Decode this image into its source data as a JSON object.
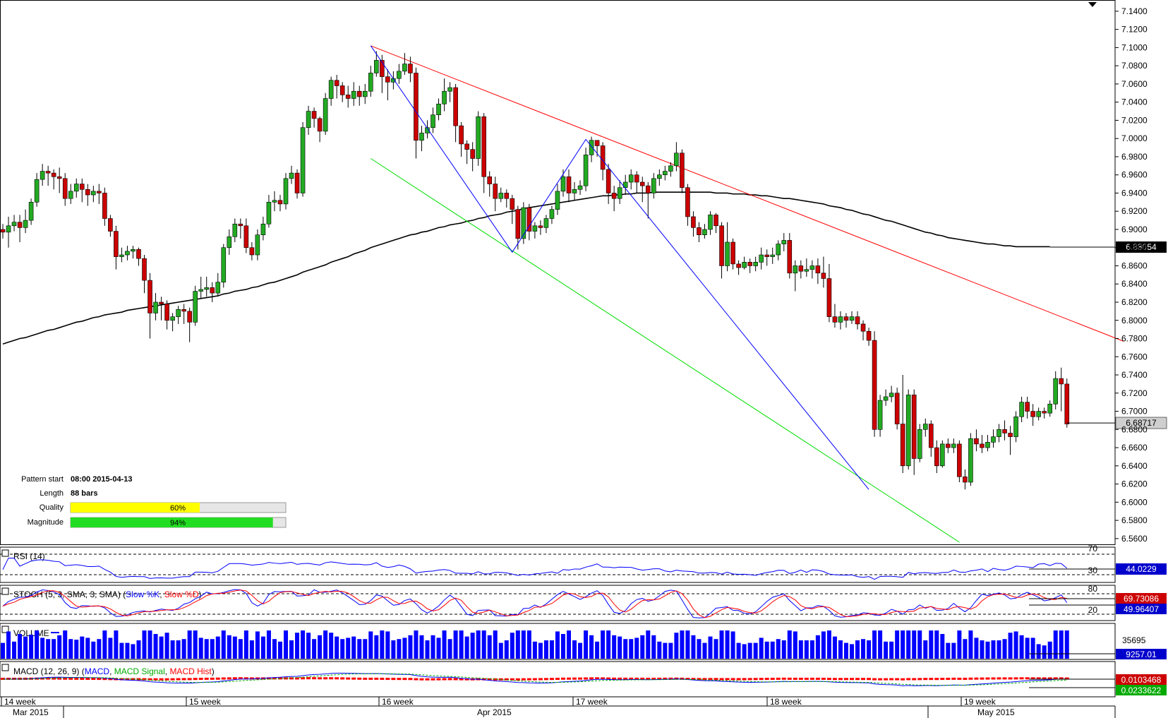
{
  "pattern_info": {
    "start_label": "Pattern start",
    "start_value": "08:00 2015-04-13",
    "length_label": "Length",
    "length_value": "88 bars",
    "quality_label": "Quality",
    "quality_value": "60%",
    "quality_fraction": 0.6,
    "magnitude_label": "Magnitude",
    "magnitude_value": "94%",
    "magnitude_fraction": 0.94
  },
  "x_axis": {
    "week_labels": [
      "14 week",
      "15 week",
      "16 week",
      "17 week",
      "18 week",
      "19 week"
    ],
    "month_labels": [
      "Mar 2015",
      "Apr 2015",
      "May 2015"
    ]
  },
  "indicators": {
    "rsi": {
      "title": "RSI (14)",
      "levels": [
        "70",
        "30"
      ],
      "value": "44.0229",
      "color": "#0000ff"
    },
    "stoch": {
      "title_prefix": "STOCH (5, 3, SMA, 3, SMA)",
      "k_label": "Slow %K",
      "d_label": "Slow %D",
      "levels": [
        "80",
        "20"
      ],
      "k_value": "49.96407",
      "d_value": "69.73086",
      "k_color": "#0000ff",
      "d_color": "#ff0000"
    },
    "volume": {
      "title": "VOLUME",
      "max_label": "35695",
      "value": "9257.01",
      "color": "#0000ff"
    },
    "macd": {
      "title_prefix": "MACD (12, 26, 9)",
      "macd_label": "MACD",
      "signal_label": "MACD Signal",
      "hist_label": "MACD Hist",
      "hist_value": "0.0103468",
      "signal_value": "0.0233622",
      "macd_color": "#0000ff",
      "signal_color": "#00aa00",
      "hist_color": "#ff0000"
    }
  },
  "chart_data": {
    "type": "candlestick",
    "y_ticks": [
      "7.1400",
      "7.1200",
      "7.1000",
      "7.0800",
      "7.0600",
      "7.0400",
      "7.0200",
      "7.0000",
      "6.9800",
      "6.9600",
      "6.9400",
      "6.9200",
      "6.9000",
      "6.8800",
      "6.8600",
      "6.8400",
      "6.8200",
      "6.8000",
      "6.7800",
      "6.7600",
      "6.7400",
      "6.7200",
      "6.7000",
      "6.6800",
      "6.6600",
      "6.6400",
      "6.6200",
      "6.6000",
      "6.5800",
      "6.5600"
    ],
    "ylim": [
      6.556,
      7.15
    ],
    "last_price": "6.68717",
    "ma_label": "6.88054",
    "ma_last": 6.88054,
    "colors": {
      "up": "#22aa22",
      "down": "#cc0000",
      "ma": "#000000",
      "pattern": "#0000ff",
      "upper_line": "#ff0000",
      "lower_line": "#00dd00"
    },
    "candles": [
      [
        6.9,
        6.897,
        6.89,
        6.906
      ],
      [
        6.897,
        6.904,
        6.88,
        6.914
      ],
      [
        6.904,
        6.908,
        6.898,
        6.916
      ],
      [
        6.908,
        6.902,
        6.886,
        6.916
      ],
      [
        6.902,
        6.91,
        6.896,
        6.922
      ],
      [
        6.91,
        6.93,
        6.905,
        6.934
      ],
      [
        6.93,
        6.955,
        6.925,
        6.962
      ],
      [
        6.955,
        6.964,
        6.948,
        6.972
      ],
      [
        6.964,
        6.962,
        6.948,
        6.97
      ],
      [
        6.962,
        6.958,
        6.944,
        6.966
      ],
      [
        6.958,
        6.956,
        6.94,
        6.968
      ],
      [
        6.956,
        6.934,
        6.926,
        6.962
      ],
      [
        6.934,
        6.942,
        6.928,
        6.95
      ],
      [
        6.942,
        6.95,
        6.935,
        6.956
      ],
      [
        6.95,
        6.944,
        6.93,
        6.956
      ],
      [
        6.944,
        6.938,
        6.926,
        6.95
      ],
      [
        6.938,
        6.942,
        6.93,
        6.948
      ],
      [
        6.942,
        6.94,
        6.928,
        6.95
      ],
      [
        6.94,
        6.912,
        6.904,
        6.946
      ],
      [
        6.912,
        6.898,
        6.892,
        6.916
      ],
      [
        6.898,
        6.87,
        6.856,
        6.904
      ],
      [
        6.87,
        6.872,
        6.864,
        6.88
      ],
      [
        6.872,
        6.876,
        6.866,
        6.882
      ],
      [
        6.876,
        6.878,
        6.868,
        6.882
      ],
      [
        6.878,
        6.868,
        6.86,
        6.88
      ],
      [
        6.868,
        6.844,
        6.83,
        6.872
      ],
      [
        6.844,
        6.808,
        6.78,
        6.852
      ],
      [
        6.808,
        6.82,
        6.8,
        6.83
      ],
      [
        6.82,
        6.818,
        6.8,
        6.826
      ],
      [
        6.818,
        6.8,
        6.79,
        6.822
      ],
      [
        6.8,
        6.804,
        6.788,
        6.808
      ],
      [
        6.804,
        6.812,
        6.796,
        6.816
      ],
      [
        6.812,
        6.81,
        6.796,
        6.818
      ],
      [
        6.81,
        6.798,
        6.776,
        6.814
      ],
      [
        6.798,
        6.832,
        6.794,
        6.838
      ],
      [
        6.832,
        6.834,
        6.824,
        6.848
      ],
      [
        6.834,
        6.836,
        6.826,
        6.848
      ],
      [
        6.836,
        6.83,
        6.82,
        6.842
      ],
      [
        6.83,
        6.842,
        6.826,
        6.852
      ],
      [
        6.842,
        6.88,
        6.836,
        6.884
      ],
      [
        6.88,
        6.892,
        6.872,
        6.9
      ],
      [
        6.892,
        6.906,
        6.886,
        6.912
      ],
      [
        6.906,
        6.904,
        6.89,
        6.912
      ],
      [
        6.904,
        6.88,
        6.874,
        6.912
      ],
      [
        6.88,
        6.872,
        6.866,
        6.886
      ],
      [
        6.872,
        6.894,
        6.866,
        6.9
      ],
      [
        6.894,
        6.906,
        6.888,
        6.914
      ],
      [
        6.906,
        6.93,
        6.902,
        6.938
      ],
      [
        6.93,
        6.932,
        6.92,
        6.942
      ],
      [
        6.932,
        6.928,
        6.92,
        6.938
      ],
      [
        6.928,
        6.956,
        6.922,
        6.962
      ],
      [
        6.956,
        6.962,
        6.95,
        6.97
      ],
      [
        6.962,
        6.94,
        6.934,
        6.966
      ],
      [
        6.94,
        7.012,
        6.936,
        7.018
      ],
      [
        7.012,
        7.03,
        7.004,
        7.036
      ],
      [
        7.03,
        7.022,
        7.012,
        7.034
      ],
      [
        7.022,
        7.008,
        6.996,
        7.024
      ],
      [
        7.008,
        7.044,
        7.004,
        7.05
      ],
      [
        7.044,
        7.064,
        7.036,
        7.068
      ],
      [
        7.064,
        7.058,
        7.044,
        7.07
      ],
      [
        7.058,
        7.048,
        7.04,
        7.062
      ],
      [
        7.048,
        7.044,
        7.034,
        7.058
      ],
      [
        7.044,
        7.052,
        7.036,
        7.062
      ],
      [
        7.052,
        7.046,
        7.036,
        7.058
      ],
      [
        7.046,
        7.052,
        7.038,
        7.06
      ],
      [
        7.052,
        7.072,
        7.046,
        7.08
      ],
      [
        7.072,
        7.086,
        7.068,
        7.096
      ],
      [
        7.086,
        7.068,
        7.05,
        7.092
      ],
      [
        7.068,
        7.062,
        7.042,
        7.076
      ],
      [
        7.062,
        7.066,
        7.054,
        7.074
      ],
      [
        7.066,
        7.074,
        7.06,
        7.082
      ],
      [
        7.074,
        7.082,
        7.07,
        7.094
      ],
      [
        7.082,
        7.072,
        7.062,
        7.09
      ],
      [
        7.072,
        6.998,
        6.978,
        7.078
      ],
      [
        6.998,
        7.006,
        6.986,
        7.014
      ],
      [
        7.006,
        7.012,
        7.0,
        7.02
      ],
      [
        7.012,
        7.026,
        7.006,
        7.034
      ],
      [
        7.026,
        7.038,
        7.02,
        7.044
      ],
      [
        7.038,
        7.052,
        7.03,
        7.066
      ],
      [
        7.052,
        7.056,
        7.04,
        7.062
      ],
      [
        7.056,
        7.014,
        6.996,
        7.06
      ],
      [
        7.014,
        6.994,
        6.98,
        7.018
      ],
      [
        6.994,
        6.988,
        6.972,
        6.998
      ],
      [
        6.988,
        6.978,
        6.964,
        6.996
      ],
      [
        6.978,
        7.024,
        6.97,
        7.03
      ],
      [
        7.024,
        6.958,
        6.94,
        7.028
      ],
      [
        6.958,
        6.95,
        6.936,
        6.964
      ],
      [
        6.95,
        6.934,
        6.92,
        6.958
      ],
      [
        6.934,
        6.94,
        6.93,
        6.946
      ],
      [
        6.94,
        6.934,
        6.924,
        6.944
      ],
      [
        6.934,
        6.922,
        6.906,
        6.938
      ],
      [
        6.922,
        6.89,
        6.878,
        6.926
      ],
      [
        6.89,
        6.924,
        6.884,
        6.93
      ],
      [
        6.924,
        6.898,
        6.888,
        6.928
      ],
      [
        6.898,
        6.904,
        6.89,
        6.908
      ],
      [
        6.904,
        6.902,
        6.894,
        6.91
      ],
      [
        6.902,
        6.912,
        6.896,
        6.916
      ],
      [
        6.912,
        6.922,
        6.906,
        6.926
      ],
      [
        6.922,
        6.942,
        6.916,
        6.95
      ],
      [
        6.942,
        6.958,
        6.936,
        6.966
      ],
      [
        6.958,
        6.94,
        6.93,
        6.966
      ],
      [
        6.94,
        6.944,
        6.932,
        6.952
      ],
      [
        6.944,
        6.948,
        6.938,
        6.954
      ],
      [
        6.948,
        6.982,
        6.942,
        6.99
      ],
      [
        6.982,
        6.998,
        6.974,
        7.002
      ],
      [
        6.998,
        6.992,
        6.98,
        6.998
      ],
      [
        6.992,
        6.966,
        6.954,
        6.996
      ],
      [
        6.966,
        6.94,
        6.928,
        6.972
      ],
      [
        6.94,
        6.934,
        6.92,
        6.948
      ],
      [
        6.934,
        6.946,
        6.928,
        6.954
      ],
      [
        6.946,
        6.952,
        6.938,
        6.96
      ],
      [
        6.952,
        6.96,
        6.944,
        6.966
      ],
      [
        6.96,
        6.952,
        6.94,
        6.964
      ],
      [
        6.952,
        6.948,
        6.93,
        6.958
      ],
      [
        6.948,
        6.94,
        6.912,
        6.952
      ],
      [
        6.94,
        6.956,
        6.934,
        6.962
      ],
      [
        6.956,
        6.96,
        6.948,
        6.966
      ],
      [
        6.96,
        6.964,
        6.954,
        6.97
      ],
      [
        6.964,
        6.97,
        6.958,
        6.974
      ],
      [
        6.97,
        6.984,
        6.964,
        6.996
      ],
      [
        6.984,
        6.946,
        6.94,
        6.988
      ],
      [
        6.946,
        6.914,
        6.904,
        6.95
      ],
      [
        6.914,
        6.902,
        6.892,
        6.92
      ],
      [
        6.902,
        6.894,
        6.886,
        6.908
      ],
      [
        6.894,
        6.9,
        6.89,
        6.906
      ],
      [
        6.9,
        6.916,
        6.894,
        6.92
      ],
      [
        6.916,
        6.904,
        6.896,
        6.918
      ],
      [
        6.904,
        6.86,
        6.846,
        6.908
      ],
      [
        6.86,
        6.886,
        6.854,
        6.908
      ],
      [
        6.886,
        6.862,
        6.856,
        6.89
      ],
      [
        6.862,
        6.858,
        6.85,
        6.866
      ],
      [
        6.858,
        6.864,
        6.856,
        6.87
      ],
      [
        6.864,
        6.86,
        6.852,
        6.868
      ],
      [
        6.86,
        6.864,
        6.854,
        6.87
      ],
      [
        6.864,
        6.872,
        6.856,
        6.88
      ],
      [
        6.872,
        6.87,
        6.86,
        6.878
      ],
      [
        6.87,
        6.872,
        6.862,
        6.88
      ],
      [
        6.872,
        6.884,
        6.866,
        6.888
      ],
      [
        6.884,
        6.888,
        6.876,
        6.896
      ],
      [
        6.888,
        6.852,
        6.846,
        6.896
      ],
      [
        6.852,
        6.86,
        6.832,
        6.866
      ],
      [
        6.86,
        6.854,
        6.846,
        6.866
      ],
      [
        6.854,
        6.856,
        6.848,
        6.868
      ],
      [
        6.856,
        6.86,
        6.846,
        6.866
      ],
      [
        6.86,
        6.852,
        6.84,
        6.868
      ],
      [
        6.852,
        6.846,
        6.836,
        6.87
      ],
      [
        6.846,
        6.804,
        6.798,
        6.862
      ],
      [
        6.804,
        6.798,
        6.792,
        6.818
      ],
      [
        6.798,
        6.804,
        6.79,
        6.81
      ],
      [
        6.804,
        6.8,
        6.792,
        6.808
      ],
      [
        6.8,
        6.804,
        6.796,
        6.81
      ],
      [
        6.804,
        6.796,
        6.79,
        6.81
      ],
      [
        6.796,
        6.788,
        6.778,
        6.8
      ],
      [
        6.788,
        6.778,
        6.772,
        6.792
      ],
      [
        6.778,
        6.68,
        6.672,
        6.788
      ],
      [
        6.68,
        6.712,
        6.672,
        6.718
      ],
      [
        6.712,
        6.716,
        6.706,
        6.724
      ],
      [
        6.716,
        6.72,
        6.71,
        6.728
      ],
      [
        6.72,
        6.686,
        6.68,
        6.726
      ],
      [
        6.686,
        6.64,
        6.632,
        6.74
      ],
      [
        6.64,
        6.718,
        6.636,
        6.724
      ],
      [
        6.718,
        6.648,
        6.63,
        6.724
      ],
      [
        6.648,
        6.68,
        6.644,
        6.686
      ],
      [
        6.68,
        6.686,
        6.672,
        6.692
      ],
      [
        6.686,
        6.66,
        6.65,
        6.69
      ],
      [
        6.66,
        6.64,
        6.632,
        6.668
      ],
      [
        6.64,
        6.664,
        6.638,
        6.668
      ],
      [
        6.664,
        6.66,
        6.654,
        6.67
      ],
      [
        6.66,
        6.664,
        6.654,
        6.67
      ],
      [
        6.664,
        6.628,
        6.622,
        6.668
      ],
      [
        6.628,
        6.622,
        6.614,
        6.636
      ],
      [
        6.622,
        6.67,
        6.618,
        6.676
      ],
      [
        6.67,
        6.664,
        6.656,
        6.68
      ],
      [
        6.664,
        6.66,
        6.654,
        6.674
      ],
      [
        6.66,
        6.666,
        6.656,
        6.674
      ],
      [
        6.666,
        6.672,
        6.66,
        6.68
      ],
      [
        6.672,
        6.68,
        6.666,
        6.686
      ],
      [
        6.68,
        6.676,
        6.668,
        6.69
      ],
      [
        6.676,
        6.672,
        6.652,
        6.684
      ],
      [
        6.672,
        6.694,
        6.666,
        6.7
      ],
      [
        6.694,
        6.71,
        6.688,
        6.716
      ],
      [
        6.71,
        6.7,
        6.692,
        6.716
      ],
      [
        6.7,
        6.694,
        6.684,
        6.708
      ],
      [
        6.694,
        6.7,
        6.69,
        6.704
      ],
      [
        6.7,
        6.698,
        6.692,
        6.704
      ],
      [
        6.698,
        6.708,
        6.694,
        6.712
      ],
      [
        6.708,
        6.736,
        6.702,
        6.744
      ],
      [
        6.736,
        6.73,
        6.7,
        6.748
      ],
      [
        6.73,
        6.686,
        6.682,
        6.736
      ]
    ],
    "ma_values": [
      6.774,
      6.776,
      6.778,
      6.78,
      6.781,
      6.783,
      6.785,
      6.787,
      6.789,
      6.79,
      6.792,
      6.794,
      6.796,
      6.798,
      6.799,
      6.801,
      6.803,
      6.804,
      6.806,
      6.807,
      6.808,
      6.809,
      6.811,
      6.812,
      6.813,
      6.814,
      6.815,
      6.816,
      6.817,
      6.818,
      6.819,
      6.82,
      6.821,
      6.822,
      6.823,
      6.824,
      6.825,
      6.826,
      6.827,
      6.829,
      6.83,
      6.832,
      6.833,
      6.834,
      6.836,
      6.837,
      6.839,
      6.841,
      6.842,
      6.844,
      6.846,
      6.848,
      6.85,
      6.853,
      6.855,
      6.857,
      6.859,
      6.861,
      6.864,
      6.866,
      6.868,
      6.87,
      6.873,
      6.875,
      6.877,
      6.88,
      6.882,
      6.884,
      6.886,
      6.888,
      6.89,
      6.892,
      6.894,
      6.895,
      6.897,
      6.898,
      6.9,
      6.902,
      6.903,
      6.905,
      6.906,
      6.907,
      6.909,
      6.91,
      6.912,
      6.913,
      6.915,
      6.916,
      6.917,
      6.919,
      6.92,
      6.921,
      6.923,
      6.924,
      6.925,
      6.926,
      6.927,
      6.928,
      6.929,
      6.93,
      6.931,
      6.932,
      6.933,
      6.934,
      6.935,
      6.936,
      6.937,
      6.937,
      6.938,
      6.938,
      6.939,
      6.939,
      6.94,
      6.94,
      6.94,
      6.941,
      6.941,
      6.941,
      6.941,
      6.941,
      6.941,
      6.941,
      6.941,
      6.941,
      6.941,
      6.941,
      6.94,
      6.94,
      6.94,
      6.939,
      6.939,
      6.939,
      6.938,
      6.938,
      6.937,
      6.937,
      6.936,
      6.935,
      6.934,
      6.934,
      6.933,
      6.932,
      6.931,
      6.93,
      6.929,
      6.928,
      6.926,
      6.925,
      6.924,
      6.922,
      6.921,
      6.919,
      6.917,
      6.916,
      6.914,
      6.912,
      6.91,
      6.909,
      6.907,
      6.905,
      6.903,
      6.901,
      6.899,
      6.897,
      6.896,
      6.894,
      6.893,
      6.891,
      6.89,
      6.889,
      6.888,
      6.887,
      6.886,
      6.885,
      6.884,
      6.884,
      6.883,
      6.882,
      6.882,
      6.881,
      6.881,
      6.881,
      6.881,
      6.881,
      6.881,
      6.881
    ],
    "pattern_points": [
      [
        65,
        7.102
      ],
      [
        90,
        6.875
      ],
      [
        103,
        6.999
      ],
      [
        153,
        6.614
      ]
    ],
    "upper_line": {
      "x": [
        65,
        198
      ],
      "y": [
        7.102,
        6.777
      ]
    },
    "lower_line": {
      "x": [
        65,
        169
      ],
      "y": [
        6.978,
        6.556
      ]
    }
  }
}
